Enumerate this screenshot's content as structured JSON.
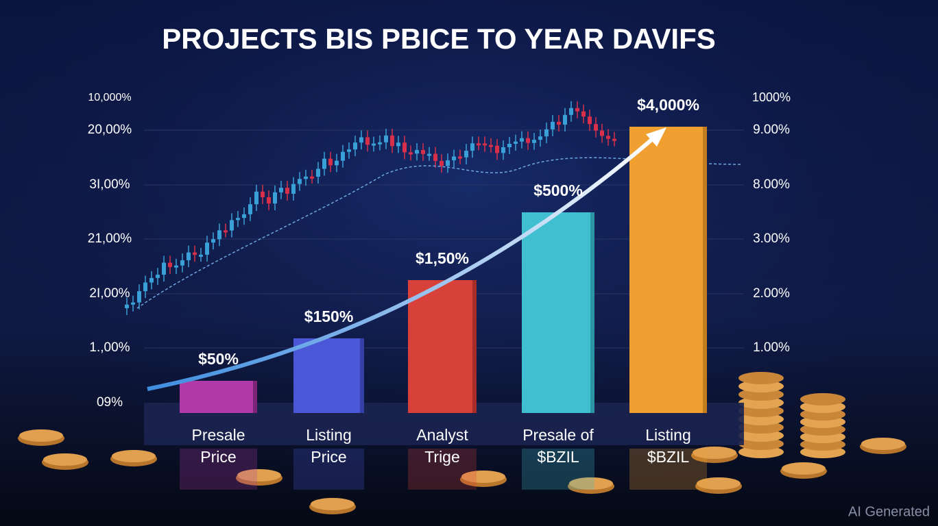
{
  "title": "PROJECTS BIS PBICE TO YEAR DAVIFS",
  "left_axis": [
    "10,000%",
    "20,00%",
    "3I,00%",
    "21,00%",
    "2I,00%",
    "1.,00%",
    "09%"
  ],
  "right_axis": [
    "1000%",
    "9.00%",
    "8.00%",
    "3.00%",
    "2.00%",
    "1.00%"
  ],
  "bars": [
    {
      "label": "$50%",
      "category": [
        "Presale",
        "Price"
      ]
    },
    {
      "label": "$150%",
      "category": [
        "Listing",
        "Price"
      ]
    },
    {
      "label": "$1,50%",
      "category": [
        "Analyst",
        "Trige"
      ]
    },
    {
      "label": "$500%",
      "category": [
        "Presale of",
        "$BZIL"
      ]
    },
    {
      "label": "$4,000%",
      "category": [
        "Listing",
        "$BZIL"
      ]
    }
  ],
  "watermark": "AI Generated"
}
